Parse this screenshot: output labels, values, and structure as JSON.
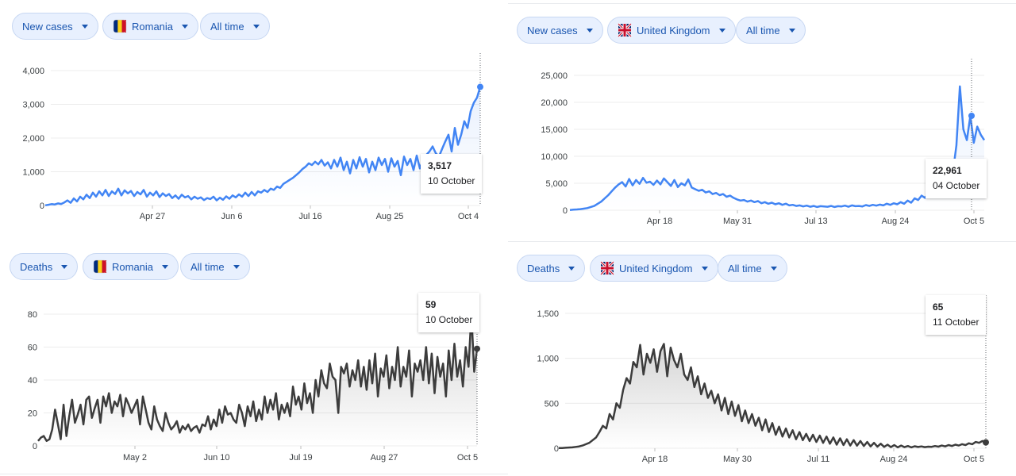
{
  "colors": {
    "cases": "#4285f4",
    "deaths": "#3c3c3c",
    "chip_text": "#1a56b0",
    "chip_bg": "#e8f0fe"
  },
  "panels": [
    {
      "metric_label": "New cases",
      "country_label": "Romania",
      "flag": "romania-flag",
      "range_label": "All time",
      "tooltip": {
        "value": "3,517",
        "date": "10 October"
      },
      "chart_data": {
        "type": "line",
        "ylim": [
          0,
          4000
        ],
        "yticks": [
          0,
          1000,
          2000,
          3000,
          4000
        ],
        "ytick_labels": [
          "0",
          "1,000",
          "2,000",
          "3,000",
          "4,000"
        ],
        "xtick_labels": [
          "Apr 27",
          "Jun 6",
          "Jul 16",
          "Aug 25",
          "Oct 4"
        ],
        "series": [
          {
            "values": [
              5,
              20,
              40,
              30,
              60,
              45,
              90,
              150,
              80,
              210,
              120,
              260,
              180,
              320,
              220,
              380,
              260,
              420,
              300,
              460,
              280,
              420,
              340,
              500,
              300,
              450,
              360,
              430,
              280,
              400,
              330,
              460,
              260,
              380,
              300,
              420,
              250,
              360,
              280,
              340,
              220,
              300,
              200,
              320,
              240,
              280,
              180,
              260,
              200,
              240,
              160,
              220,
              190,
              260,
              150,
              230,
              170,
              270,
              200,
              300,
              240,
              330,
              260,
              380,
              280,
              400,
              300,
              420,
              380,
              460,
              400,
              500,
              460,
              560,
              520,
              640,
              700,
              760,
              820,
              900,
              980,
              1080,
              1150,
              1250,
              1200,
              1300,
              1220,
              1350,
              1180,
              1280,
              1100,
              1350,
              1150,
              1420,
              1050,
              1300,
              950,
              1350,
              1100,
              1430,
              1150,
              1380,
              980,
              1300,
              1050,
              1420,
              1200,
              1380,
              1000,
              1400,
              1150,
              1320,
              900,
              1450,
              1200,
              1380,
              1050,
              1480,
              1100,
              1350,
              1500,
              1600,
              1750,
              1550,
              1450,
              1680,
              1900,
              2100,
              1600,
              2300,
              1800,
              2100,
              2500,
              2300,
              2800,
              3050,
              3200,
              3517
            ]
          }
        ]
      }
    },
    {
      "metric_label": "New cases",
      "country_label": "United Kingdom",
      "flag": "uk-flag",
      "range_label": "All time",
      "tooltip": {
        "value": "22,961",
        "date": "04 October"
      },
      "chart_data": {
        "type": "line",
        "ylim": [
          0,
          25000
        ],
        "yticks": [
          0,
          5000,
          10000,
          15000,
          20000,
          25000
        ],
        "ytick_labels": [
          "0",
          "5,000",
          "10,000",
          "15,000",
          "20,000",
          "25,000"
        ],
        "xtick_labels": [
          "Apr 18",
          "May 31",
          "Jul 13",
          "Aug 24",
          "Oct 5"
        ],
        "series": [
          {
            "values": [
              50,
              100,
              150,
              200,
              300,
              400,
              600,
              800,
              1200,
              1600,
              2200,
              2800,
              3500,
              4200,
              4800,
              5200,
              4400,
              5800,
              4600,
              5600,
              4900,
              6000,
              5100,
              5300,
              4700,
              5500,
              4800,
              5900,
              5200,
              4500,
              5600,
              4300,
              5000,
              4600,
              5700,
              4200,
              3900,
              3600,
              3800,
              3300,
              3500,
              3000,
              3200,
              2800,
              3000,
              2500,
              2700,
              2300,
              2000,
              1800,
              1900,
              1600,
              1800,
              1500,
              1700,
              1300,
              1500,
              1200,
              1400,
              1100,
              1300,
              1000,
              1200,
              900,
              1000,
              800,
              900,
              700,
              850,
              650,
              800,
              600,
              750,
              700,
              650,
              800,
              600,
              750,
              700,
              850,
              650,
              900,
              750,
              800,
              700,
              950,
              800,
              1000,
              850,
              1050,
              900,
              1200,
              1000,
              1300,
              1100,
              1500,
              1200,
              1800,
              1400,
              2200,
              1900,
              2700,
              2300,
              3100,
              2800,
              3500,
              4000,
              4500,
              5200,
              6000,
              7000,
              12000,
              22961,
              15000,
              13000,
              17500,
              12500,
              15500,
              14000,
              13000
            ]
          }
        ]
      }
    },
    {
      "metric_label": "Deaths",
      "country_label": "Romania",
      "flag": "romania-flag",
      "range_label": "All time",
      "tooltip": {
        "value": "59",
        "date": "10 October"
      },
      "chart_data": {
        "type": "line",
        "ylim": [
          0,
          80
        ],
        "yticks": [
          0,
          20,
          40,
          60,
          80
        ],
        "ytick_labels": [
          "0",
          "20",
          "40",
          "60",
          "80"
        ],
        "xtick_labels": [
          "May 2",
          "Jun 10",
          "Jul 19",
          "Aug 27",
          "Oct 5"
        ],
        "series": [
          {
            "values": [
              3,
              5,
              6,
              3,
              4,
              10,
              22,
              13,
              4,
              25,
              6,
              18,
              28,
              14,
              19,
              25,
              13,
              28,
              30,
              17,
              23,
              28,
              14,
              30,
              24,
              32,
              20,
              27,
              24,
              31,
              18,
              29,
              25,
              20,
              24,
              28,
              13,
              30,
              22,
              14,
              10,
              24,
              16,
              12,
              9,
              20,
              14,
              10,
              12,
              15,
              8,
              12,
              10,
              13,
              9,
              11,
              12,
              8,
              13,
              12,
              18,
              10,
              16,
              12,
              22,
              14,
              24,
              19,
              20,
              16,
              14,
              25,
              20,
              12,
              24,
              18,
              27,
              15,
              22,
              16,
              30,
              20,
              28,
              22,
              32,
              16,
              25,
              20,
              26,
              18,
              36,
              25,
              30,
              22,
              38,
              26,
              32,
              20,
              40,
              30,
              46,
              38,
              35,
              50,
              42,
              40,
              20,
              48,
              44,
              50,
              36,
              46,
              40,
              52,
              36,
              48,
              34,
              52,
              38,
              56,
              30,
              47,
              42,
              55,
              35,
              48,
              40,
              60,
              36,
              48,
              42,
              58,
              30,
              50,
              45,
              52,
              40,
              60,
              38,
              56,
              32,
              54,
              42,
              50,
              30,
              58,
              40,
              62,
              42,
              52,
              36,
              60,
              48,
              80,
              45,
              59
            ]
          }
        ]
      }
    },
    {
      "metric_label": "Deaths",
      "country_label": "United Kingdom",
      "flag": "uk-flag",
      "range_label": "All time",
      "tooltip": {
        "value": "65",
        "date": "11 October"
      },
      "chart_data": {
        "type": "line",
        "ylim": [
          0,
          1500
        ],
        "yticks": [
          0,
          500,
          1000,
          1500
        ],
        "ytick_labels": [
          "0",
          "500",
          "1,000",
          "1,500"
        ],
        "xtick_labels": [
          "Apr 18",
          "May 30",
          "Jul 11",
          "Aug 24",
          "Oct 5"
        ],
        "series": [
          {
            "values": [
              2,
              3,
              5,
              8,
              10,
              15,
              20,
              30,
              45,
              60,
              90,
              120,
              180,
              250,
              220,
              380,
              320,
              500,
              450,
              650,
              780,
              720,
              960,
              900,
              1150,
              820,
              1050,
              950,
              1100,
              850,
              1080,
              1160,
              800,
              1120,
              980,
              900,
              1050,
              820,
              760,
              900,
              680,
              800,
              600,
              720,
              560,
              640,
              500,
              600,
              420,
              560,
              380,
              520,
              360,
              480,
              300,
              420,
              280,
              380,
              250,
              340,
              200,
              320,
              180,
              280,
              150,
              240,
              130,
              220,
              120,
              200,
              100,
              180,
              90,
              160,
              80,
              150,
              70,
              140,
              60,
              130,
              50,
              120,
              40,
              110,
              35,
              100,
              30,
              90,
              28,
              80,
              25,
              70,
              20,
              60,
              18,
              50,
              15,
              40,
              12,
              35,
              10,
              30,
              12,
              25,
              10,
              22,
              14,
              20,
              12,
              18,
              16,
              25,
              18,
              30,
              20,
              35,
              25,
              40,
              30,
              45,
              35,
              55,
              45,
              70,
              60,
              80,
              65
            ]
          }
        ]
      }
    }
  ]
}
